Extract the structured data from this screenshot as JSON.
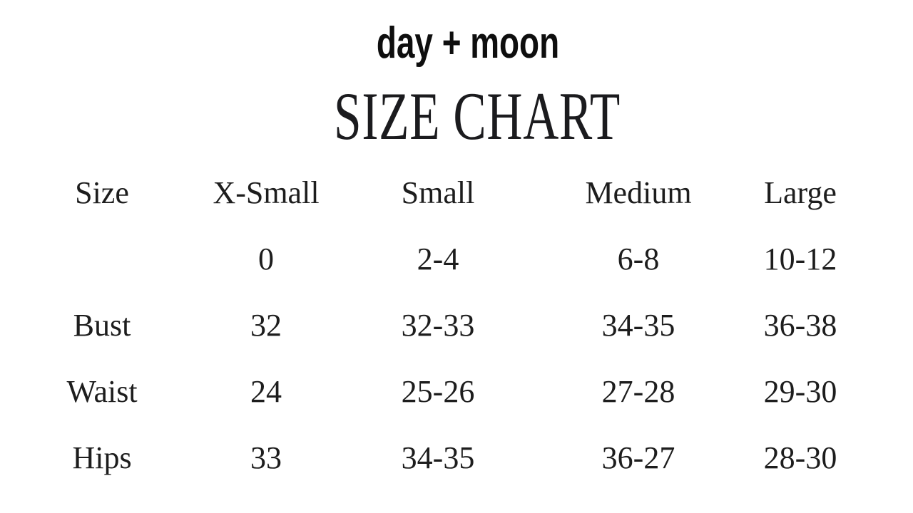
{
  "header": {
    "brand": "day + moon",
    "title": "SIZE CHART"
  },
  "colors": {
    "background": "#ffffff",
    "table_text": "#1d1d1d",
    "brand_text": "#0e0e0e"
  },
  "chart_data": {
    "type": "table",
    "title": "SIZE CHART",
    "columns": [
      "Size",
      "X-Small",
      "Small",
      "Medium",
      "Large"
    ],
    "rows": [
      {
        "label": "",
        "values": [
          "0",
          "2-4",
          "6-8",
          "10-12"
        ]
      },
      {
        "label": "Bust",
        "values": [
          "32",
          "32-33",
          "34-35",
          "36-38"
        ]
      },
      {
        "label": "Waist",
        "values": [
          "24",
          "25-26",
          "27-28",
          "29-30"
        ]
      },
      {
        "label": "Hips",
        "values": [
          "33",
          "34-35",
          "36-27",
          "28-30"
        ]
      }
    ]
  }
}
